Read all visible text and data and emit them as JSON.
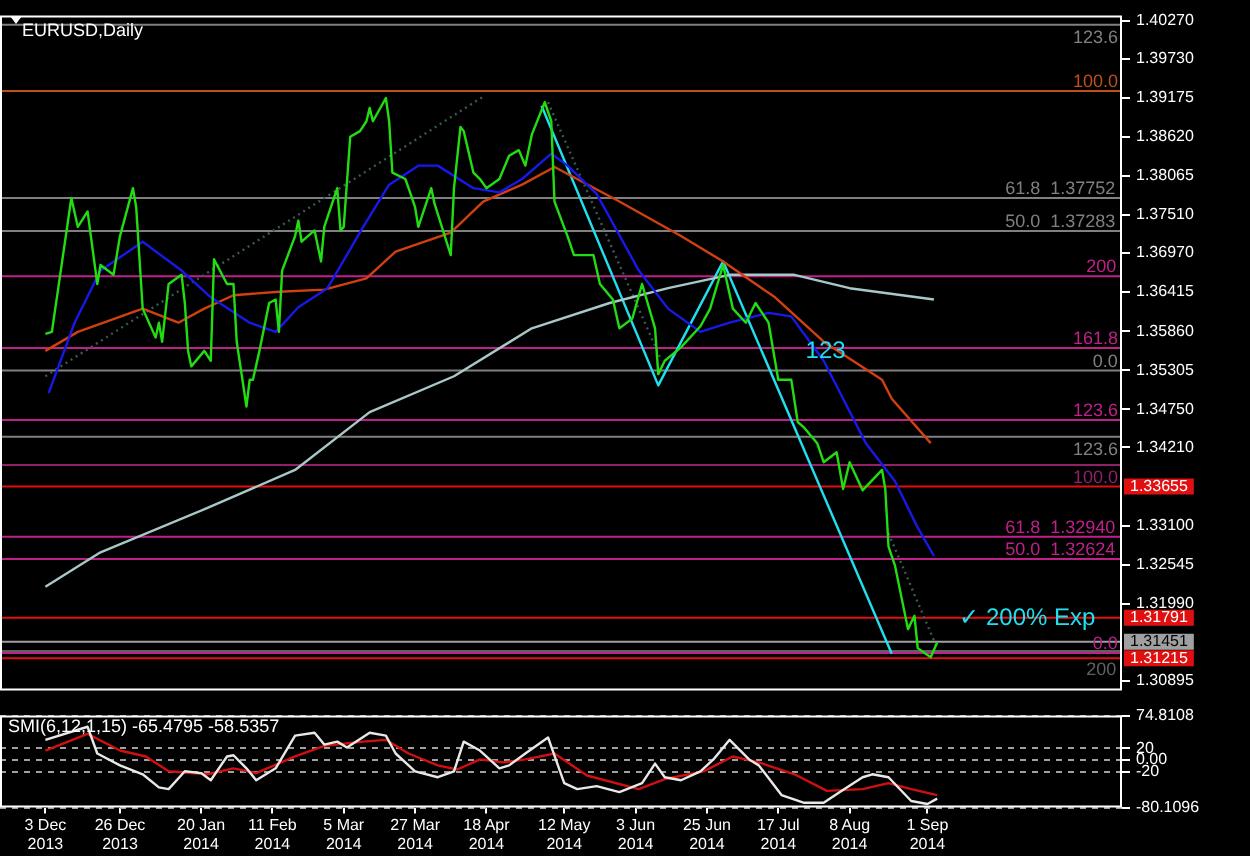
{
  "chart_data": [
    {
      "type": "line",
      "title": "EURUSD,Daily",
      "tick_labels": "y",
      "grid": false,
      "xlim": [
        "2013-11-19",
        "2014-10-31"
      ],
      "ylim": [
        1.3076,
        1.4034
      ],
      "yticks": [
        {
          "value": 1.4027,
          "label": "1.40270"
        },
        {
          "value": 1.3973,
          "label": "1.39730"
        },
        1.39175,
        {
          "value": 1.3862,
          "label": "1.38620"
        },
        1.38065,
        {
          "value": 1.3751,
          "label": "1.37510"
        },
        {
          "value": 1.3697,
          "label": "1.36970"
        },
        1.36415,
        {
          "value": 1.3586,
          "label": "1.35860"
        },
        1.35305,
        {
          "value": 1.3475,
          "label": "1.34750"
        },
        {
          "value": 1.3421,
          "label": "1.34210"
        },
        {
          "value": 1.331,
          "label": "1.33100"
        },
        1.32545,
        {
          "value": 1.3199,
          "label": "1.31990"
        },
        1.30895
      ],
      "series": [
        {
          "color": "#22dd11",
          "x": [
            "2013-12-03",
            "2013-12-05",
            "2013-12-11",
            "2013-12-13",
            "2013-12-16",
            "2013-12-19",
            "2013-12-20",
            "2013-12-24",
            "2013-12-26",
            "2013-12-30",
            "2013-12-31",
            "2014-01-02",
            "2014-01-06",
            "2014-01-07",
            "2014-01-08",
            "2014-01-10",
            "2014-01-14",
            "2014-01-15",
            "2014-01-16",
            "2014-01-17",
            "2014-01-21",
            "2014-01-23",
            "2014-01-24",
            "2014-01-28",
            "2014-01-30",
            "2014-01-31",
            "2014-02-03",
            "2014-02-04",
            "2014-02-05",
            "2014-02-07",
            "2014-02-10",
            "2014-02-12",
            "2014-02-13",
            "2014-02-14",
            "2014-02-18",
            "2014-02-19",
            "2014-02-20",
            "2014-02-24",
            "2014-02-26",
            "2014-02-27",
            "2014-03-03",
            "2014-03-04",
            "2014-03-05",
            "2014-03-07",
            "2014-03-10",
            "2014-03-12",
            "2014-03-13",
            "2014-03-14",
            "2014-03-18",
            "2014-03-19",
            "2014-03-20",
            "2014-03-24",
            "2014-03-25",
            "2014-03-27",
            "2014-03-28",
            "2014-04-01",
            "2014-04-02",
            "2014-04-07",
            "2014-04-08",
            "2014-04-10",
            "2014-04-11",
            "2014-04-14",
            "2014-04-16",
            "2014-04-18",
            "2014-04-22",
            "2014-04-25",
            "2014-04-28",
            "2014-04-30",
            "2014-05-02",
            "2014-05-06",
            "2014-05-08",
            "2014-05-09",
            "2014-05-13",
            "2014-05-15",
            "2014-05-21",
            "2014-05-23",
            "2014-05-27",
            "2014-05-29",
            "2014-06-02",
            "2014-06-05",
            "2014-06-09",
            "2014-06-10",
            "2014-06-12",
            "2014-06-17",
            "2014-06-23",
            "2014-06-26",
            "2014-06-30",
            "2014-07-03",
            "2014-07-07",
            "2014-07-10",
            "2014-07-14",
            "2014-07-17",
            "2014-07-21",
            "2014-07-23",
            "2014-07-25",
            "2014-07-29",
            "2014-07-31",
            "2014-08-04",
            "2014-08-06",
            "2014-08-08",
            "2014-08-12",
            "2014-08-18",
            "2014-08-19",
            "2014-08-20",
            "2014-08-22",
            "2014-08-26",
            "2014-08-28",
            "2014-08-29",
            "2014-09-02",
            "2014-09-04"
          ],
          "values": [
            1.3582,
            1.3585,
            1.3775,
            1.3734,
            1.3756,
            1.3653,
            1.368,
            1.3666,
            1.3721,
            1.3789,
            1.3762,
            1.3618,
            1.3577,
            1.3598,
            1.3571,
            1.3653,
            1.3666,
            1.3626,
            1.3558,
            1.3536,
            1.3558,
            1.3544,
            1.3688,
            1.3653,
            1.3653,
            1.3571,
            1.3479,
            1.3517,
            1.3517,
            1.3558,
            1.3626,
            1.3631,
            1.3585,
            1.3672,
            1.3721,
            1.3743,
            1.3713,
            1.3729,
            1.3685,
            1.3734,
            1.3789,
            1.3729,
            1.3734,
            1.3862,
            1.387,
            1.3884,
            1.3903,
            1.3884,
            1.3917,
            1.3884,
            1.3811,
            1.3802,
            1.3789,
            1.3762,
            1.3734,
            1.3789,
            1.3767,
            1.3694,
            1.3789,
            1.3876,
            1.387,
            1.3811,
            1.3802,
            1.3789,
            1.3802,
            1.3835,
            1.3843,
            1.3821,
            1.3865,
            1.3911,
            1.3884,
            1.377,
            1.3721,
            1.3694,
            1.3694,
            1.3653,
            1.3631,
            1.359,
            1.3604,
            1.3653,
            1.359,
            1.3525,
            1.3544,
            1.3563,
            1.3593,
            1.3618,
            1.368,
            1.3618,
            1.3598,
            1.3626,
            1.3598,
            1.3517,
            1.3517,
            1.3457,
            1.3449,
            1.3427,
            1.34,
            1.3414,
            1.3362,
            1.34,
            1.336,
            1.3389,
            1.3362,
            1.328,
            1.3253,
            1.3163,
            1.3182,
            1.3136,
            1.3123,
            1.3144
          ]
        },
        {
          "color": "#1818e8",
          "x": [
            "2013-12-04",
            "2013-12-12",
            "2013-12-20",
            "2014-01-02",
            "2014-01-14",
            "2014-01-23",
            "2014-02-04",
            "2014-02-12",
            "2014-02-19",
            "2014-02-28",
            "2014-03-11",
            "2014-03-19",
            "2014-03-28",
            "2014-04-03",
            "2014-04-14",
            "2014-04-22",
            "2014-04-29",
            "2014-05-08",
            "2014-05-13",
            "2014-05-22",
            "2014-06-04",
            "2014-06-13",
            "2014-06-23",
            "2014-07-02",
            "2014-07-14",
            "2014-07-21",
            "2014-07-31",
            "2014-08-06",
            "2014-08-13",
            "2014-08-22",
            "2014-08-29",
            "2014-09-03"
          ],
          "values": [
            1.3498,
            1.3598,
            1.3672,
            1.3713,
            1.3672,
            1.3634,
            1.3598,
            1.3585,
            1.362,
            1.3647,
            1.3734,
            1.3794,
            1.3821,
            1.3821,
            1.3789,
            1.3783,
            1.3802,
            1.3838,
            1.3821,
            1.3781,
            1.3672,
            1.3618,
            1.3585,
            1.3598,
            1.3612,
            1.3607,
            1.3544,
            1.349,
            1.3427,
            1.3373,
            1.3307,
            1.3267
          ]
        },
        {
          "color": "#d04010",
          "x": [
            "2013-12-03",
            "2013-12-13",
            "2014-01-02",
            "2014-01-13",
            "2014-01-21",
            "2014-01-30",
            "2014-02-13",
            "2014-02-27",
            "2014-03-12",
            "2014-03-21",
            "2014-04-07",
            "2014-04-17",
            "2014-04-29",
            "2014-05-09",
            "2014-05-29",
            "2014-06-17",
            "2014-06-30",
            "2014-07-16",
            "2014-07-31",
            "2014-08-18",
            "2014-08-21",
            "2014-09-02"
          ],
          "values": [
            1.3558,
            1.3585,
            1.3618,
            1.3598,
            1.3618,
            1.3637,
            1.3642,
            1.3645,
            1.3661,
            1.3699,
            1.3726,
            1.377,
            1.3794,
            1.3819,
            1.377,
            1.3721,
            1.3685,
            1.3634,
            1.3571,
            1.3517,
            1.349,
            1.3427
          ]
        },
        {
          "color": "#a8c8c8",
          "x": [
            "2013-12-03",
            "2013-12-20",
            "2014-01-22",
            "2014-02-18",
            "2014-03-13",
            "2014-04-08",
            "2014-05-02",
            "2014-05-26",
            "2014-06-13",
            "2014-07-02",
            "2014-07-22",
            "2014-08-08",
            "2014-09-03"
          ],
          "values": [
            1.3223,
            1.3272,
            1.3335,
            1.3389,
            1.3471,
            1.3522,
            1.359,
            1.3626,
            1.3647,
            1.3666,
            1.3666,
            1.3647,
            1.3631
          ]
        },
        {
          "color": "#20e0f0",
          "x": [
            "2014-05-05",
            "2014-06-10",
            "2014-06-30",
            "2014-08-21"
          ],
          "values": [
            1.3906,
            1.3509,
            1.3685,
            1.3128
          ]
        },
        {
          "color": "#3a5a50",
          "line_style": "dotted",
          "x": [
            "2013-12-03",
            "2014-04-17",
            "2014-04-18",
            "2014-05-07",
            "2014-06-11",
            "2014-06-12",
            "2014-08-20",
            "2014-09-04"
          ],
          "values": [
            1.3522,
            1.3919,
            null,
            1.3911,
            1.3544,
            null,
            1.3299,
            1.3136
          ]
        }
      ],
      "ref_lines": [
        {
          "axis": "y",
          "value": 1.4021,
          "color": "#808080"
        },
        {
          "axis": "y",
          "value": 1.3927,
          "color": "#c0501a"
        },
        {
          "axis": "y",
          "value": 1.37752,
          "color": "#808080"
        },
        {
          "axis": "y",
          "value": 1.37283,
          "color": "#808080"
        },
        {
          "axis": "y",
          "value": 1.3664,
          "color": "#c0208a"
        },
        {
          "axis": "y",
          "value": 1.3562,
          "color": "#c0208a"
        },
        {
          "axis": "y",
          "value": 1.353,
          "color": "#808080"
        },
        {
          "axis": "y",
          "value": 1.346,
          "color": "#c0208a"
        },
        {
          "axis": "y",
          "value": 1.3436,
          "color": "#808080"
        },
        {
          "axis": "y",
          "value": 1.3396,
          "color": "#90206a"
        },
        {
          "axis": "y",
          "value": 1.33655,
          "label": "1.33655",
          "color": "#e01010"
        },
        {
          "axis": "y",
          "value": 1.3294,
          "color": "#c0208a"
        },
        {
          "axis": "y",
          "value": 1.32624,
          "color": "#c0208a"
        },
        {
          "axis": "y",
          "value": 1.31791,
          "label": "1.31791",
          "color": "#e01010"
        },
        {
          "axis": "y",
          "value": 1.31451,
          "label": "1.31451",
          "color": "#a0a0a0"
        },
        {
          "axis": "y",
          "value": 1.3132,
          "color": "#606060"
        },
        {
          "axis": "y",
          "value": 1.3129,
          "color": "#c0208a"
        },
        {
          "axis": "y",
          "value": 1.31215,
          "label": "1.31215",
          "color": "#e01010"
        }
      ],
      "annotations": [
        "123",
        "✓ 200% Exp",
        {
          "text": "123.6",
          "x": "2014-10-16",
          "y": 1.4021
        },
        {
          "text": "100.0",
          "x": "2014-10-16",
          "y": 1.3927
        },
        {
          "text": "61.8  1.37752",
          "x": "2014-09-25",
          "y": 1.37752
        },
        {
          "text": "50.0  1.37283",
          "x": "2014-09-25",
          "y": 1.37283
        },
        {
          "text": "200",
          "x": "2014-10-20",
          "y": 1.3664
        },
        {
          "text": "161.8",
          "x": "2014-10-16",
          "y": 1.3562
        },
        {
          "text": "0.0",
          "x": "2014-10-22",
          "y": 1.353
        },
        {
          "text": "123.6",
          "x": "2014-10-16",
          "y": 1.346
        },
        {
          "text": "123.6",
          "x": "2014-10-16",
          "y": 1.3436
        },
        {
          "text": "100.0",
          "x": "2014-10-16",
          "y": 1.3396
        },
        {
          "text": "61.8  1.32940",
          "x": "2014-09-25",
          "y": 1.3294
        },
        {
          "text": "50.0  1.32624",
          "x": "2014-09-25",
          "y": 1.32624
        },
        {
          "text": "200",
          "x": "2014-10-20",
          "y": 1.3132
        },
        {
          "text": "0.0",
          "x": "2014-10-22",
          "y": 1.3129
        }
      ]
    },
    {
      "type": "line",
      "title": "SMI(6,12,1,15) -65.4795 -58.5357",
      "grid": "y",
      "xlim": [
        "2013-11-19",
        "2014-10-31"
      ],
      "ylim": [
        -80.1096,
        74.8108
      ],
      "xticks": [
        {
          "value": "2013-12-03",
          "label": "3 Dec 2013"
        },
        {
          "value": "2013-12-26",
          "label": "26 Dec 2013"
        },
        {
          "value": "2014-01-20",
          "label": "20 Jan 2014"
        },
        {
          "value": "2014-02-11",
          "label": "11 Feb 2014"
        },
        {
          "value": "2014-03-05",
          "label": "5 Mar 2014"
        },
        {
          "value": "2014-03-27",
          "label": "27 Mar 2014"
        },
        {
          "value": "2014-04-18",
          "label": "18 Apr 2014"
        },
        {
          "value": "2014-05-12",
          "label": "12 May 2014"
        },
        {
          "value": "2014-06-03",
          "label": "3 Jun 2014"
        },
        {
          "value": "2014-06-25",
          "label": "25 Jun 2014"
        },
        {
          "value": "2014-07-17",
          "label": "17 Jul 2014"
        },
        {
          "value": "2014-08-08",
          "label": "8 Aug 2014"
        },
        {
          "value": "2014-09-01",
          "label": "1 Sep 2014"
        }
      ],
      "yticks": [
        74.8108,
        20,
        {
          "value": 0,
          "label": "0.00"
        },
        -20,
        -80.1096
      ],
      "series": [
        {
          "color": "#e8e8e8",
          "x": [
            "2013-12-03",
            "2013-12-16",
            "2013-12-19",
            "2013-12-26",
            "2014-01-02",
            "2014-01-07",
            "2014-01-10",
            "2014-01-15",
            "2014-01-20",
            "2014-01-23",
            "2014-01-28",
            "2014-01-30",
            "2014-02-03",
            "2014-02-06",
            "2014-02-12",
            "2014-02-18",
            "2014-02-24",
            "2014-02-27",
            "2014-03-03",
            "2014-03-06",
            "2014-03-13",
            "2014-03-18",
            "2014-03-21",
            "2014-03-27",
            "2014-04-03",
            "2014-04-08",
            "2014-04-11",
            "2014-04-16",
            "2014-04-22",
            "2014-04-25",
            "2014-04-30",
            "2014-05-07",
            "2014-05-12",
            "2014-05-16",
            "2014-05-22",
            "2014-05-29",
            "2014-06-05",
            "2014-06-09",
            "2014-06-12",
            "2014-06-17",
            "2014-06-23",
            "2014-06-27",
            "2014-07-02",
            "2014-07-08",
            "2014-07-11",
            "2014-07-18",
            "2014-07-25",
            "2014-07-31",
            "2014-08-05",
            "2014-08-12",
            "2014-08-15",
            "2014-08-20",
            "2014-08-27",
            "2014-09-01",
            "2014-09-04"
          ],
          "values": [
            34,
            56,
            11,
            -9,
            -24,
            -46,
            -49,
            -19,
            -22,
            -34,
            6,
            8,
            -14,
            -34,
            -14,
            41,
            46,
            26,
            31,
            21,
            46,
            41,
            11,
            -19,
            -29,
            -19,
            31,
            16,
            -14,
            -9,
            11,
            38,
            -39,
            -49,
            -44,
            -54,
            -39,
            -6,
            -29,
            -34,
            -19,
            1,
            34,
            1,
            -9,
            -59,
            -72,
            -72,
            -54,
            -29,
            -24,
            -29,
            -69,
            -74,
            -65
          ]
        },
        {
          "color": "#d01010",
          "x": [
            "2013-12-03",
            "2013-12-16",
            "2013-12-26",
            "2014-01-03",
            "2014-01-10",
            "2014-01-22",
            "2014-01-30",
            "2014-02-06",
            "2014-02-18",
            "2014-02-27",
            "2014-03-11",
            "2014-03-18",
            "2014-03-25",
            "2014-04-03",
            "2014-04-09",
            "2014-04-16",
            "2014-04-23",
            "2014-04-30",
            "2014-05-09",
            "2014-05-19",
            "2014-06-04",
            "2014-06-12",
            "2014-06-24",
            "2014-07-03",
            "2014-07-11",
            "2014-07-22",
            "2014-08-01",
            "2014-08-12",
            "2014-08-20",
            "2014-08-27",
            "2014-09-04"
          ],
          "values": [
            16,
            44,
            16,
            6,
            -19,
            -24,
            -14,
            -22,
            6,
            24,
            31,
            34,
            11,
            -9,
            -16,
            1,
            -4,
            1,
            11,
            -26,
            -49,
            -32,
            -19,
            6,
            -4,
            -24,
            -52,
            -49,
            -39,
            -49,
            -59
          ]
        }
      ]
    }
  ]
}
